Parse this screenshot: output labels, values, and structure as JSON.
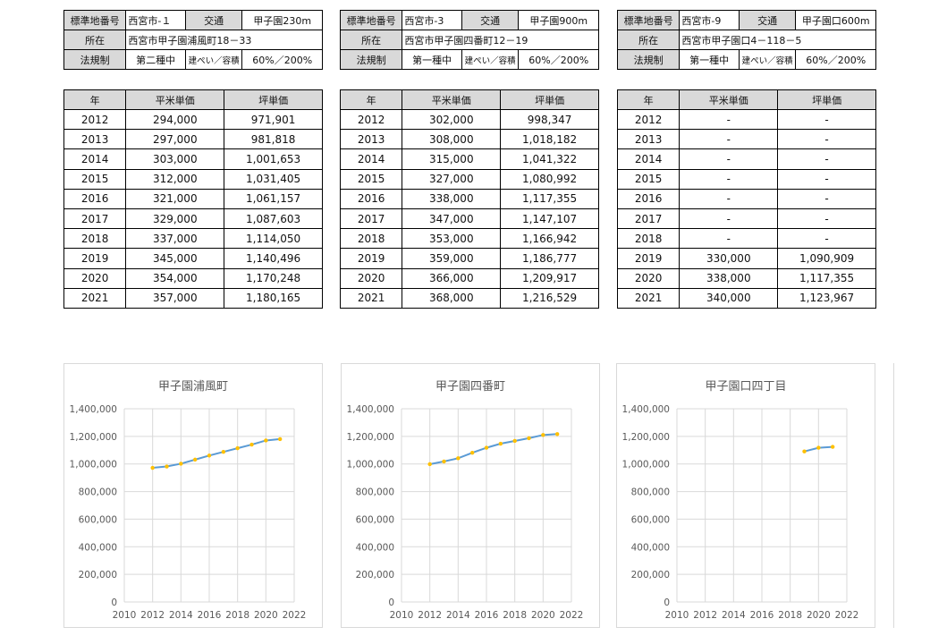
{
  "headers": {
    "year": "年",
    "sqm_price": "平米単価",
    "tsubo_price": "坪単価"
  },
  "sites": [
    {
      "info": {
        "std_label": "標準地番号",
        "std_value": "西宮市-１",
        "traffic_label": "交通",
        "traffic_value": "甲子園230m",
        "location_label": "所在",
        "location_value": "西宮市甲子園浦風町18－33",
        "regulation_label": "法規制",
        "zone_value": "第二種中",
        "ratio_label": "建ぺい／容積",
        "ratio_value": "60%／200%"
      },
      "rows": [
        {
          "year": "2012",
          "sqm": "294,000",
          "tsubo": "971,901"
        },
        {
          "year": "2013",
          "sqm": "297,000",
          "tsubo": "981,818"
        },
        {
          "year": "2014",
          "sqm": "303,000",
          "tsubo": "1,001,653"
        },
        {
          "year": "2015",
          "sqm": "312,000",
          "tsubo": "1,031,405"
        },
        {
          "year": "2016",
          "sqm": "321,000",
          "tsubo": "1,061,157"
        },
        {
          "year": "2017",
          "sqm": "329,000",
          "tsubo": "1,087,603"
        },
        {
          "year": "2018",
          "sqm": "337,000",
          "tsubo": "1,114,050"
        },
        {
          "year": "2019",
          "sqm": "345,000",
          "tsubo": "1,140,496"
        },
        {
          "year": "2020",
          "sqm": "354,000",
          "tsubo": "1,170,248"
        },
        {
          "year": "2021",
          "sqm": "357,000",
          "tsubo": "1,180,165"
        }
      ]
    },
    {
      "info": {
        "std_label": "標準地番号",
        "std_value": "西宮市-3",
        "traffic_label": "交通",
        "traffic_value": "甲子園900m",
        "location_label": "所在",
        "location_value": "西宮市甲子園四番町12－19",
        "regulation_label": "法規制",
        "zone_value": "第一種中",
        "ratio_label": "建ぺい／容積",
        "ratio_value": "60%／200%"
      },
      "rows": [
        {
          "year": "2012",
          "sqm": "302,000",
          "tsubo": "998,347"
        },
        {
          "year": "2013",
          "sqm": "308,000",
          "tsubo": "1,018,182"
        },
        {
          "year": "2014",
          "sqm": "315,000",
          "tsubo": "1,041,322"
        },
        {
          "year": "2015",
          "sqm": "327,000",
          "tsubo": "1,080,992"
        },
        {
          "year": "2016",
          "sqm": "338,000",
          "tsubo": "1,117,355"
        },
        {
          "year": "2017",
          "sqm": "347,000",
          "tsubo": "1,147,107"
        },
        {
          "year": "2018",
          "sqm": "353,000",
          "tsubo": "1,166,942"
        },
        {
          "year": "2019",
          "sqm": "359,000",
          "tsubo": "1,186,777"
        },
        {
          "year": "2020",
          "sqm": "366,000",
          "tsubo": "1,209,917"
        },
        {
          "year": "2021",
          "sqm": "368,000",
          "tsubo": "1,216,529"
        }
      ]
    },
    {
      "info": {
        "std_label": "標準地番号",
        "std_value": "西宮市-9",
        "traffic_label": "交通",
        "traffic_value": "甲子園口600m",
        "location_label": "所在",
        "location_value": "西宮市甲子園口4－118－5",
        "regulation_label": "法規制",
        "zone_value": "第一種中",
        "ratio_label": "建ぺい／容積",
        "ratio_value": "60%／200%"
      },
      "rows": [
        {
          "year": "2012",
          "sqm": "-",
          "tsubo": "-"
        },
        {
          "year": "2013",
          "sqm": "-",
          "tsubo": "-"
        },
        {
          "year": "2014",
          "sqm": "-",
          "tsubo": "-"
        },
        {
          "year": "2015",
          "sqm": "-",
          "tsubo": "-"
        },
        {
          "year": "2016",
          "sqm": "-",
          "tsubo": "-"
        },
        {
          "year": "2017",
          "sqm": "-",
          "tsubo": "-"
        },
        {
          "year": "2018",
          "sqm": "-",
          "tsubo": "-"
        },
        {
          "year": "2019",
          "sqm": "330,000",
          "tsubo": "1,090,909"
        },
        {
          "year": "2020",
          "sqm": "338,000",
          "tsubo": "1,117,355"
        },
        {
          "year": "2021",
          "sqm": "340,000",
          "tsubo": "1,123,967"
        }
      ]
    }
  ],
  "colors": {
    "line": "#5b9bd5",
    "marker": "#ffc000",
    "grid": "#d9d9d9",
    "axis_text": "#595959"
  },
  "chart_data": [
    {
      "type": "line",
      "title": "甲子園浦風町",
      "x": [
        2012,
        2013,
        2014,
        2015,
        2016,
        2017,
        2018,
        2019,
        2020,
        2021
      ],
      "series": [
        {
          "values": [
            971901,
            981818,
            1001653,
            1031405,
            1061157,
            1087603,
            1114050,
            1140496,
            1170248,
            1180165
          ]
        }
      ],
      "xlim": [
        2010,
        2022
      ],
      "ylim": [
        0,
        1400000
      ],
      "xticks": [
        "2010",
        "2012",
        "2014",
        "2016",
        "2018",
        "2020",
        "2022"
      ],
      "yticks": [
        "0",
        "200,000",
        "400,000",
        "600,000",
        "800,000",
        "1,000,000",
        "1,200,000",
        "1,400,000"
      ],
      "grid": true,
      "legend": "none"
    },
    {
      "type": "line",
      "title": "甲子園四番町",
      "x": [
        2012,
        2013,
        2014,
        2015,
        2016,
        2017,
        2018,
        2019,
        2020,
        2021
      ],
      "series": [
        {
          "values": [
            998347,
            1018182,
            1041322,
            1080992,
            1117355,
            1147107,
            1166942,
            1186777,
            1209917,
            1216529
          ]
        }
      ],
      "xlim": [
        2010,
        2022
      ],
      "ylim": [
        0,
        1400000
      ],
      "xticks": [
        "2010",
        "2012",
        "2014",
        "2016",
        "2018",
        "2020",
        "2022"
      ],
      "yticks": [
        "0",
        "200,000",
        "400,000",
        "600,000",
        "800,000",
        "1,000,000",
        "1,200,000",
        "1,400,000"
      ],
      "grid": true,
      "legend": "none"
    },
    {
      "type": "line",
      "title": "甲子園口四丁目",
      "x": [
        2019,
        2020,
        2021
      ],
      "series": [
        {
          "values": [
            1090909,
            1117355,
            1123967
          ]
        }
      ],
      "xlim": [
        2010,
        2022
      ],
      "ylim": [
        0,
        1400000
      ],
      "xticks": [
        "2010",
        "2012",
        "2014",
        "2016",
        "2018",
        "2020",
        "2022"
      ],
      "yticks": [
        "0",
        "200,000",
        "400,000",
        "600,000",
        "800,000",
        "1,000,000",
        "1,200,000",
        "1,400,000"
      ],
      "grid": true,
      "legend": "none"
    }
  ]
}
